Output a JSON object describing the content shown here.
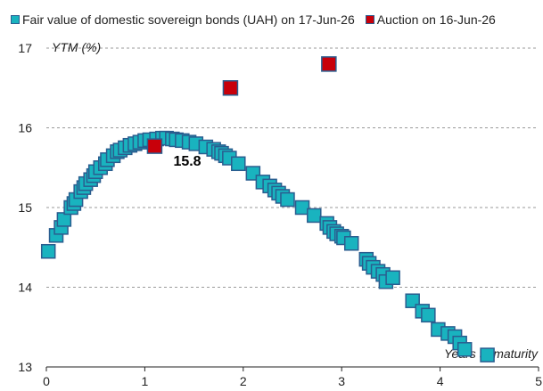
{
  "chart_data": {
    "type": "scatter",
    "legend": {
      "placement": "top-left"
    },
    "xlabel": "Years to maturity",
    "ylabel": "YTM (%)",
    "xlim": [
      0,
      5
    ],
    "ylim": [
      13,
      17
    ],
    "xticks": [
      0,
      1,
      2,
      3,
      4,
      5
    ],
    "yticks": [
      13,
      14,
      15,
      16,
      17
    ],
    "grid": {
      "horizontal": true,
      "style": "dashed"
    },
    "series": [
      {
        "name": "Fair value of domestic sovereign bonds (UAH) on 17-Jun-26",
        "color": "#19b3bf",
        "edge_color": "#2a5d8f",
        "marker": "square",
        "points": [
          [
            0.02,
            14.45
          ],
          [
            0.1,
            14.65
          ],
          [
            0.15,
            14.75
          ],
          [
            0.18,
            14.85
          ],
          [
            0.25,
            15.0
          ],
          [
            0.28,
            15.05
          ],
          [
            0.3,
            15.1
          ],
          [
            0.35,
            15.2
          ],
          [
            0.38,
            15.25
          ],
          [
            0.4,
            15.3
          ],
          [
            0.45,
            15.35
          ],
          [
            0.48,
            15.4
          ],
          [
            0.5,
            15.45
          ],
          [
            0.55,
            15.5
          ],
          [
            0.6,
            15.55
          ],
          [
            0.62,
            15.6
          ],
          [
            0.68,
            15.65
          ],
          [
            0.72,
            15.7
          ],
          [
            0.75,
            15.72
          ],
          [
            0.8,
            15.75
          ],
          [
            0.85,
            15.78
          ],
          [
            0.9,
            15.8
          ],
          [
            0.95,
            15.82
          ],
          [
            1.0,
            15.84
          ],
          [
            1.05,
            15.85
          ],
          [
            1.12,
            15.86
          ],
          [
            1.18,
            15.87
          ],
          [
            1.22,
            15.87
          ],
          [
            1.28,
            15.86
          ],
          [
            1.32,
            15.85
          ],
          [
            1.38,
            15.84
          ],
          [
            1.45,
            15.82
          ],
          [
            1.52,
            15.8
          ],
          [
            1.62,
            15.76
          ],
          [
            1.7,
            15.73
          ],
          [
            1.75,
            15.7
          ],
          [
            1.78,
            15.68
          ],
          [
            1.82,
            15.65
          ],
          [
            1.86,
            15.62
          ],
          [
            1.95,
            15.55
          ],
          [
            2.1,
            15.43
          ],
          [
            2.2,
            15.32
          ],
          [
            2.27,
            15.27
          ],
          [
            2.32,
            15.22
          ],
          [
            2.36,
            15.18
          ],
          [
            2.4,
            15.14
          ],
          [
            2.45,
            15.1
          ],
          [
            2.6,
            15.0
          ],
          [
            2.72,
            14.9
          ],
          [
            2.85,
            14.8
          ],
          [
            2.88,
            14.75
          ],
          [
            2.92,
            14.7
          ],
          [
            2.95,
            14.67
          ],
          [
            3.0,
            14.64
          ],
          [
            3.02,
            14.62
          ],
          [
            3.1,
            14.55
          ],
          [
            3.25,
            14.35
          ],
          [
            3.28,
            14.3
          ],
          [
            3.32,
            14.25
          ],
          [
            3.37,
            14.2
          ],
          [
            3.42,
            14.16
          ],
          [
            3.45,
            14.07
          ],
          [
            3.52,
            14.12
          ],
          [
            3.72,
            13.83
          ],
          [
            3.82,
            13.7
          ],
          [
            3.88,
            13.65
          ],
          [
            3.98,
            13.47
          ],
          [
            4.08,
            13.42
          ],
          [
            4.15,
            13.38
          ],
          [
            4.2,
            13.3
          ],
          [
            4.25,
            13.22
          ],
          [
            4.48,
            13.15
          ]
        ]
      },
      {
        "name": "Auction on 16-Jun-26",
        "color": "#c8000a",
        "edge_color": "#2a5d8f",
        "marker": "square",
        "points": [
          [
            1.1,
            15.77
          ],
          [
            1.87,
            16.5
          ],
          [
            2.87,
            16.8
          ]
        ]
      }
    ],
    "annotations": [
      {
        "text": "15.8",
        "x": 1.1,
        "y": 15.77
      }
    ]
  }
}
